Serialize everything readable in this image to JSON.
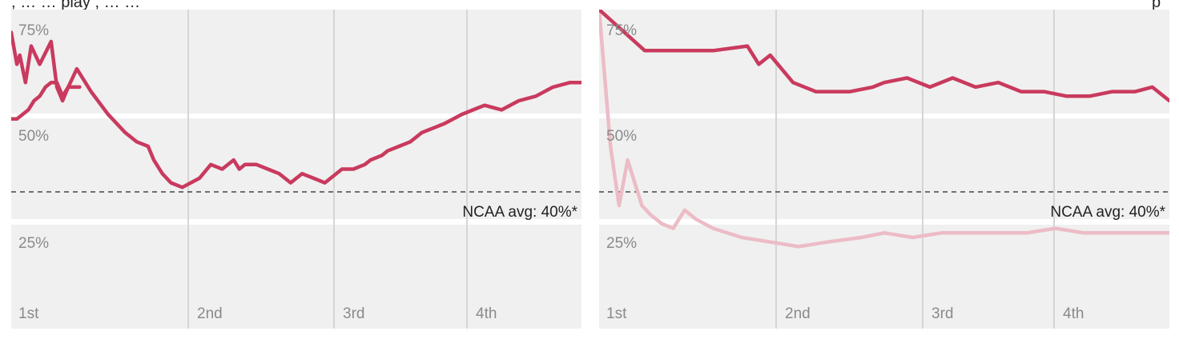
{
  "header": {
    "left_fragment": ", … … play , … …",
    "right_fragment": "p"
  },
  "colors": {
    "primary": "#c93a5e",
    "secondary": "#ecbcc6",
    "band": "#f0f0f0",
    "grid": "#d5d5d5",
    "reference": "#444444"
  },
  "chart_data": [
    {
      "type": "line",
      "x_labels": [
        "1st",
        "2nd",
        "3rd",
        "4th"
      ],
      "y_ticks": [
        "75%",
        "50%",
        "25%"
      ],
      "ylim": [
        10,
        80
      ],
      "reference_line": {
        "value": 40,
        "label": "NCAA avg: 40%*"
      },
      "series": [
        {
          "color": "#c93a5e",
          "x": [
            0,
            0.01,
            0.015,
            0.025,
            0.035,
            0.05,
            0.07,
            0.08,
            0.09,
            0.1,
            0.115,
            0.14,
            0.17,
            0.2,
            0.22,
            0.24,
            0.25,
            0.265,
            0.28,
            0.3,
            0.33,
            0.35,
            0.37,
            0.39,
            0.4,
            0.41,
            0.43,
            0.45,
            0.47,
            0.49,
            0.51,
            0.53,
            0.55,
            0.58,
            0.6,
            0.62,
            0.63,
            0.65,
            0.66,
            0.68,
            0.7,
            0.72,
            0.74,
            0.76,
            0.79,
            0.81,
            0.83,
            0.86,
            0.89,
            0.92,
            0.95,
            0.98,
            1
          ],
          "y": [
            75,
            68,
            70,
            64,
            72,
            68,
            73,
            63,
            60,
            63,
            67,
            62,
            57,
            53,
            51,
            50,
            47,
            44,
            42,
            41,
            43,
            46,
            45,
            47,
            45,
            46,
            46,
            45,
            44,
            42,
            44,
            43,
            42,
            45,
            45,
            46,
            47,
            48,
            49,
            50,
            51,
            53,
            54,
            55,
            57,
            58,
            59,
            58,
            60,
            61,
            63,
            64,
            64
          ]
        },
        {
          "color": "#c93a5e",
          "x": [
            0,
            0.01,
            0.02,
            0.03,
            0.04,
            0.05,
            0.06,
            0.07,
            0.08,
            0.09,
            0.1,
            0.12
          ],
          "y": [
            56,
            56,
            57,
            58,
            60,
            61,
            63,
            64,
            64,
            61,
            63,
            63
          ]
        }
      ]
    },
    {
      "type": "line",
      "x_labels": [
        "1st",
        "2nd",
        "3rd",
        "4th"
      ],
      "y_ticks": [
        "75%",
        "50%",
        "25%"
      ],
      "ylim": [
        10,
        80
      ],
      "reference_line": {
        "value": 40,
        "label": "NCAA avg: 40%*"
      },
      "series": [
        {
          "color": "#ecbcc6",
          "x": [
            0,
            0.02,
            0.035,
            0.05,
            0.075,
            0.09,
            0.11,
            0.13,
            0.15,
            0.17,
            0.2,
            0.25,
            0.3,
            0.35,
            0.4,
            0.46,
            0.5,
            0.55,
            0.6,
            0.65,
            0.7,
            0.75,
            0.8,
            0.85,
            0.9,
            0.95,
            1
          ],
          "y": [
            80,
            50,
            37,
            47,
            37,
            35,
            33,
            32,
            36,
            34,
            32,
            30,
            29,
            28,
            29,
            30,
            31,
            30,
            31,
            31,
            31,
            31,
            32,
            31,
            31,
            31,
            31
          ]
        },
        {
          "color": "#c93a5e",
          "x": [
            0,
            0.08,
            0.12,
            0.2,
            0.26,
            0.28,
            0.3,
            0.34,
            0.38,
            0.44,
            0.48,
            0.5,
            0.54,
            0.58,
            0.62,
            0.66,
            0.7,
            0.74,
            0.78,
            0.82,
            0.86,
            0.9,
            0.94,
            0.97,
            1
          ],
          "y": [
            80,
            71,
            71,
            71,
            72,
            68,
            70,
            64,
            62,
            62,
            63,
            64,
            65,
            63,
            65,
            63,
            64,
            62,
            62,
            61,
            61,
            62,
            62,
            63,
            60
          ]
        }
      ]
    }
  ]
}
